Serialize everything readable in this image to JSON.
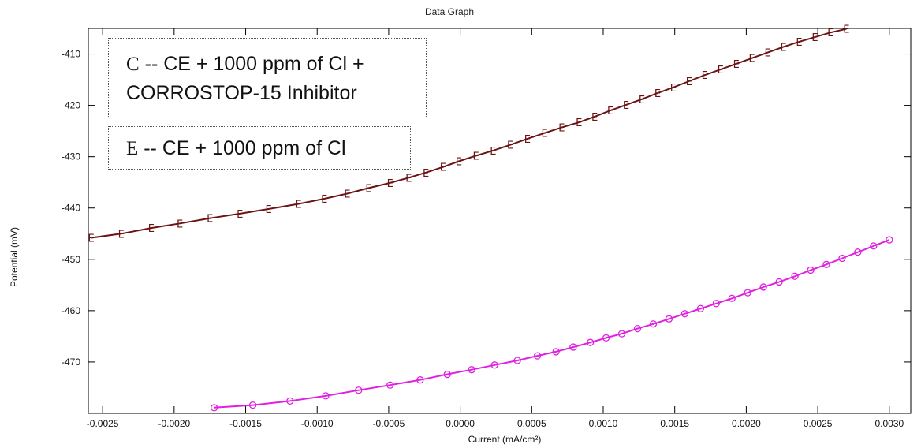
{
  "chart_data": {
    "type": "line",
    "title": "Data Graph",
    "xlabel": "Current (mA/cm²)",
    "ylabel": "Potential (mV)",
    "xlim": [
      -0.0026,
      0.00315
    ],
    "ylim": [
      -480,
      -405
    ],
    "x_ticks": [
      -0.0025,
      -0.002,
      -0.0015,
      -0.001,
      -0.0005,
      0.0,
      0.0005,
      0.001,
      0.0015,
      0.002,
      0.0025,
      0.003
    ],
    "x_tick_labels": [
      "-0.0025",
      "-0.0020",
      "-0.0015",
      "-0.0010",
      "-0.0005",
      "0.0000",
      "0.0005",
      "0.0010",
      "0.0015",
      "0.0020",
      "0.0025",
      "0.0030"
    ],
    "y_ticks": [
      -410,
      -420,
      -430,
      -440,
      -450,
      -460,
      -470
    ],
    "y_tick_labels": [
      "-410",
      "-420",
      "-430",
      "-440",
      "-450",
      "-460",
      "-470"
    ],
    "grid": false,
    "series": [
      {
        "marker_label": "E",
        "color": "#6b1414",
        "x": [
          -0.00258,
          -0.00237,
          -0.00216,
          -0.00196,
          -0.00175,
          -0.00154,
          -0.00134,
          -0.00113,
          -0.00095,
          -0.00079,
          -0.00064,
          -0.00049,
          -0.00036,
          -0.00024,
          -0.00012,
          -1e-05,
          0.00011,
          0.00023,
          0.00035,
          0.00047,
          0.00059,
          0.00071,
          0.00083,
          0.00094,
          0.00105,
          0.00116,
          0.00127,
          0.00138,
          0.00149,
          0.0016,
          0.00171,
          0.00182,
          0.00193,
          0.00204,
          0.00215,
          0.00226,
          0.00237,
          0.00248,
          0.00259,
          0.0027
        ],
        "y": [
          -445.8,
          -445.0,
          -443.9,
          -443.0,
          -442.0,
          -441.1,
          -440.2,
          -439.2,
          -438.2,
          -437.2,
          -436.1,
          -435.1,
          -434.1,
          -433.1,
          -432.0,
          -430.9,
          -429.8,
          -428.8,
          -427.7,
          -426.5,
          -425.4,
          -424.3,
          -423.3,
          -422.2,
          -421.0,
          -419.9,
          -418.8,
          -417.6,
          -416.5,
          -415.3,
          -414.1,
          -413.0,
          -411.9,
          -410.8,
          -409.7,
          -408.6,
          -407.6,
          -406.7,
          -405.8,
          -405.1
        ]
      },
      {
        "marker_label": "C",
        "color": "#e020e0",
        "x": [
          -0.00172,
          -0.00145,
          -0.00119,
          -0.00094,
          -0.00071,
          -0.00049,
          -0.00028,
          -9e-05,
          8e-05,
          0.00024,
          0.0004,
          0.00054,
          0.00067,
          0.00079,
          0.00091,
          0.00102,
          0.00113,
          0.00124,
          0.00135,
          0.00146,
          0.00157,
          0.00168,
          0.00179,
          0.0019,
          0.00201,
          0.00212,
          0.00223,
          0.00234,
          0.00245,
          0.00256,
          0.00267,
          0.00278,
          0.00289,
          0.003
        ],
        "y": [
          -478.9,
          -478.4,
          -477.6,
          -476.6,
          -475.5,
          -474.5,
          -473.5,
          -472.4,
          -471.5,
          -470.6,
          -469.7,
          -468.8,
          -468.0,
          -467.1,
          -466.2,
          -465.3,
          -464.5,
          -463.5,
          -462.6,
          -461.6,
          -460.6,
          -459.6,
          -458.6,
          -457.6,
          -456.5,
          -455.4,
          -454.4,
          -453.3,
          -452.1,
          -451.0,
          -449.8,
          -448.6,
          -447.4,
          -446.2
        ]
      }
    ]
  },
  "legend": {
    "c": {
      "letter": "C",
      "text_line1": " -- CE +  1000 ppm of Cl +",
      "text_line2": "CORROSTOP-15 Inhibitor"
    },
    "e": {
      "letter": "E",
      "text_line1": " -- CE +  1000 ppm of Cl"
    }
  }
}
